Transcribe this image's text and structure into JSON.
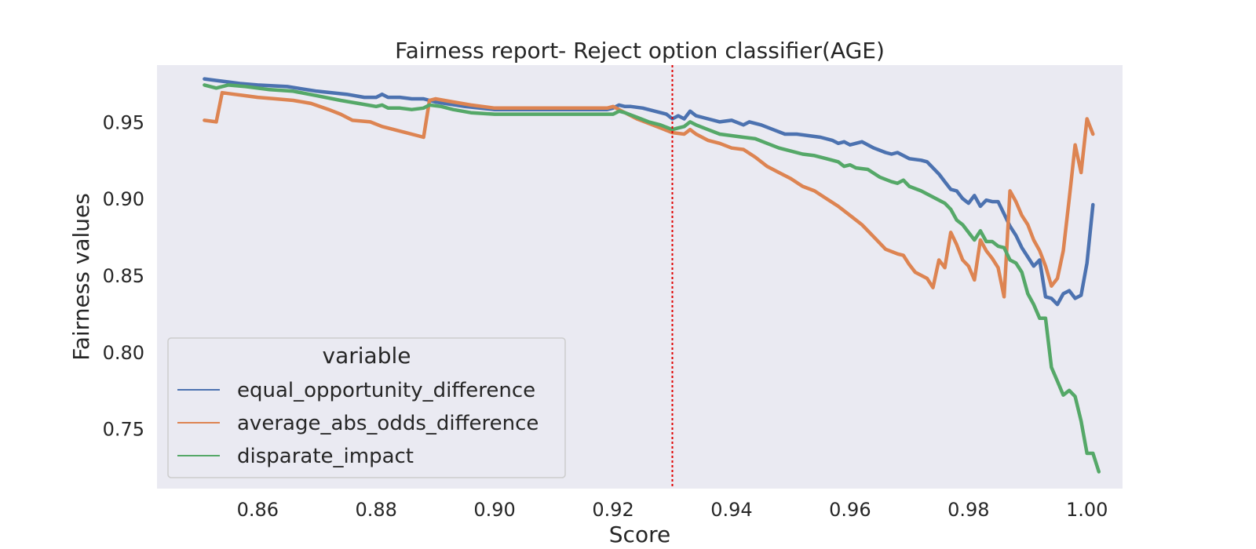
{
  "chart_data": {
    "type": "line",
    "title": "Fairness report- Reject option classifier(AGE)",
    "xlabel": "Score",
    "ylabel": "Fairness values",
    "xlim": [
      0.843,
      1.006
    ],
    "ylim": [
      0.711,
      0.987
    ],
    "xticks": [
      "0.86",
      "0.88",
      "0.90",
      "0.92",
      "0.94",
      "0.96",
      "0.98",
      "1.00"
    ],
    "yticks": [
      "0.75",
      "0.80",
      "0.85",
      "0.90",
      "0.95"
    ],
    "grid": false,
    "background": "#eaeaf2",
    "reference_line": {
      "x": 0.93,
      "color": "#e00000",
      "style": "dotted"
    },
    "legend": {
      "title": "variable",
      "placement": "lower-left"
    },
    "series": [
      {
        "name": "equal_opportunity_difference",
        "color": "#4c72b0",
        "points": [
          [
            0.851,
            0.978
          ],
          [
            0.853,
            0.977
          ],
          [
            0.855,
            0.976
          ],
          [
            0.857,
            0.975
          ],
          [
            0.86,
            0.974
          ],
          [
            0.865,
            0.973
          ],
          [
            0.87,
            0.97
          ],
          [
            0.875,
            0.968
          ],
          [
            0.878,
            0.966
          ],
          [
            0.88,
            0.966
          ],
          [
            0.881,
            0.968
          ],
          [
            0.882,
            0.966
          ],
          [
            0.884,
            0.966
          ],
          [
            0.886,
            0.965
          ],
          [
            0.888,
            0.965
          ],
          [
            0.89,
            0.963
          ],
          [
            0.895,
            0.96
          ],
          [
            0.9,
            0.958
          ],
          [
            0.905,
            0.958
          ],
          [
            0.91,
            0.958
          ],
          [
            0.915,
            0.958
          ],
          [
            0.919,
            0.958
          ],
          [
            0.92,
            0.959
          ],
          [
            0.921,
            0.961
          ],
          [
            0.922,
            0.96
          ],
          [
            0.923,
            0.96
          ],
          [
            0.925,
            0.959
          ],
          [
            0.927,
            0.957
          ],
          [
            0.929,
            0.955
          ],
          [
            0.93,
            0.952
          ],
          [
            0.931,
            0.954
          ],
          [
            0.932,
            0.952
          ],
          [
            0.933,
            0.957
          ],
          [
            0.934,
            0.954
          ],
          [
            0.936,
            0.952
          ],
          [
            0.938,
            0.95
          ],
          [
            0.94,
            0.951
          ],
          [
            0.942,
            0.948
          ],
          [
            0.943,
            0.95
          ],
          [
            0.945,
            0.948
          ],
          [
            0.947,
            0.945
          ],
          [
            0.949,
            0.942
          ],
          [
            0.951,
            0.942
          ],
          [
            0.953,
            0.941
          ],
          [
            0.955,
            0.94
          ],
          [
            0.957,
            0.938
          ],
          [
            0.958,
            0.936
          ],
          [
            0.959,
            0.937
          ],
          [
            0.96,
            0.935
          ],
          [
            0.962,
            0.937
          ],
          [
            0.964,
            0.933
          ],
          [
            0.966,
            0.93
          ],
          [
            0.967,
            0.929
          ],
          [
            0.968,
            0.93
          ],
          [
            0.97,
            0.926
          ],
          [
            0.972,
            0.925
          ],
          [
            0.973,
            0.924
          ],
          [
            0.974,
            0.92
          ],
          [
            0.975,
            0.916
          ],
          [
            0.976,
            0.911
          ],
          [
            0.977,
            0.906
          ],
          [
            0.978,
            0.905
          ],
          [
            0.979,
            0.9
          ],
          [
            0.98,
            0.897
          ],
          [
            0.981,
            0.902
          ],
          [
            0.982,
            0.895
          ],
          [
            0.983,
            0.899
          ],
          [
            0.984,
            0.898
          ],
          [
            0.985,
            0.898
          ],
          [
            0.986,
            0.89
          ],
          [
            0.987,
            0.882
          ],
          [
            0.988,
            0.876
          ],
          [
            0.989,
            0.868
          ],
          [
            0.99,
            0.862
          ],
          [
            0.991,
            0.856
          ],
          [
            0.992,
            0.86
          ],
          [
            0.993,
            0.836
          ],
          [
            0.994,
            0.835
          ],
          [
            0.995,
            0.831
          ],
          [
            0.996,
            0.838
          ],
          [
            0.997,
            0.84
          ],
          [
            0.998,
            0.835
          ],
          [
            0.999,
            0.837
          ],
          [
            1.0,
            0.858
          ],
          [
            1.001,
            0.896
          ]
        ]
      },
      {
        "name": "average_abs_odds_difference",
        "color": "#dd8452",
        "points": [
          [
            0.851,
            0.951
          ],
          [
            0.853,
            0.95
          ],
          [
            0.854,
            0.969
          ],
          [
            0.856,
            0.968
          ],
          [
            0.858,
            0.967
          ],
          [
            0.86,
            0.966
          ],
          [
            0.863,
            0.965
          ],
          [
            0.866,
            0.964
          ],
          [
            0.869,
            0.962
          ],
          [
            0.872,
            0.958
          ],
          [
            0.874,
            0.955
          ],
          [
            0.876,
            0.951
          ],
          [
            0.879,
            0.95
          ],
          [
            0.881,
            0.947
          ],
          [
            0.883,
            0.945
          ],
          [
            0.885,
            0.943
          ],
          [
            0.887,
            0.941
          ],
          [
            0.888,
            0.94
          ],
          [
            0.889,
            0.964
          ],
          [
            0.89,
            0.965
          ],
          [
            0.893,
            0.963
          ],
          [
            0.896,
            0.961
          ],
          [
            0.9,
            0.959
          ],
          [
            0.905,
            0.959
          ],
          [
            0.91,
            0.959
          ],
          [
            0.915,
            0.959
          ],
          [
            0.919,
            0.959
          ],
          [
            0.92,
            0.96
          ],
          [
            0.921,
            0.958
          ],
          [
            0.922,
            0.956
          ],
          [
            0.924,
            0.952
          ],
          [
            0.926,
            0.949
          ],
          [
            0.928,
            0.946
          ],
          [
            0.93,
            0.943
          ],
          [
            0.932,
            0.942
          ],
          [
            0.933,
            0.945
          ],
          [
            0.934,
            0.942
          ],
          [
            0.936,
            0.938
          ],
          [
            0.938,
            0.936
          ],
          [
            0.94,
            0.933
          ],
          [
            0.942,
            0.932
          ],
          [
            0.944,
            0.927
          ],
          [
            0.946,
            0.921
          ],
          [
            0.948,
            0.917
          ],
          [
            0.95,
            0.913
          ],
          [
            0.952,
            0.908
          ],
          [
            0.954,
            0.905
          ],
          [
            0.956,
            0.9
          ],
          [
            0.958,
            0.895
          ],
          [
            0.96,
            0.889
          ],
          [
            0.962,
            0.883
          ],
          [
            0.964,
            0.875
          ],
          [
            0.966,
            0.867
          ],
          [
            0.968,
            0.864
          ],
          [
            0.969,
            0.863
          ],
          [
            0.97,
            0.857
          ],
          [
            0.971,
            0.852
          ],
          [
            0.973,
            0.848
          ],
          [
            0.974,
            0.842
          ],
          [
            0.975,
            0.86
          ],
          [
            0.976,
            0.855
          ],
          [
            0.977,
            0.878
          ],
          [
            0.978,
            0.87
          ],
          [
            0.979,
            0.86
          ],
          [
            0.98,
            0.856
          ],
          [
            0.981,
            0.847
          ],
          [
            0.982,
            0.873
          ],
          [
            0.983,
            0.866
          ],
          [
            0.984,
            0.861
          ],
          [
            0.985,
            0.855
          ],
          [
            0.986,
            0.836
          ],
          [
            0.987,
            0.905
          ],
          [
            0.988,
            0.898
          ],
          [
            0.989,
            0.889
          ],
          [
            0.99,
            0.883
          ],
          [
            0.991,
            0.873
          ],
          [
            0.992,
            0.866
          ],
          [
            0.993,
            0.856
          ],
          [
            0.994,
            0.843
          ],
          [
            0.995,
            0.848
          ],
          [
            0.996,
            0.866
          ],
          [
            0.997,
            0.9
          ],
          [
            0.998,
            0.935
          ],
          [
            0.999,
            0.917
          ],
          [
            1.0,
            0.952
          ],
          [
            1.001,
            0.942
          ]
        ]
      },
      {
        "name": "disparate_impact",
        "color": "#55a868",
        "points": [
          [
            0.851,
            0.974
          ],
          [
            0.853,
            0.972
          ],
          [
            0.855,
            0.974
          ],
          [
            0.858,
            0.973
          ],
          [
            0.862,
            0.971
          ],
          [
            0.866,
            0.97
          ],
          [
            0.87,
            0.967
          ],
          [
            0.874,
            0.964
          ],
          [
            0.877,
            0.962
          ],
          [
            0.88,
            0.96
          ],
          [
            0.881,
            0.961
          ],
          [
            0.882,
            0.959
          ],
          [
            0.884,
            0.959
          ],
          [
            0.886,
            0.958
          ],
          [
            0.888,
            0.959
          ],
          [
            0.889,
            0.961
          ],
          [
            0.891,
            0.96
          ],
          [
            0.893,
            0.958
          ],
          [
            0.896,
            0.956
          ],
          [
            0.9,
            0.955
          ],
          [
            0.905,
            0.955
          ],
          [
            0.91,
            0.955
          ],
          [
            0.915,
            0.955
          ],
          [
            0.92,
            0.955
          ],
          [
            0.921,
            0.957
          ],
          [
            0.922,
            0.956
          ],
          [
            0.924,
            0.953
          ],
          [
            0.926,
            0.95
          ],
          [
            0.928,
            0.948
          ],
          [
            0.93,
            0.945
          ],
          [
            0.931,
            0.946
          ],
          [
            0.932,
            0.947
          ],
          [
            0.933,
            0.95
          ],
          [
            0.934,
            0.948
          ],
          [
            0.936,
            0.945
          ],
          [
            0.938,
            0.942
          ],
          [
            0.94,
            0.941
          ],
          [
            0.942,
            0.94
          ],
          [
            0.944,
            0.939
          ],
          [
            0.946,
            0.936
          ],
          [
            0.948,
            0.933
          ],
          [
            0.95,
            0.931
          ],
          [
            0.952,
            0.929
          ],
          [
            0.954,
            0.928
          ],
          [
            0.956,
            0.926
          ],
          [
            0.958,
            0.924
          ],
          [
            0.959,
            0.921
          ],
          [
            0.96,
            0.922
          ],
          [
            0.961,
            0.92
          ],
          [
            0.963,
            0.919
          ],
          [
            0.965,
            0.914
          ],
          [
            0.967,
            0.911
          ],
          [
            0.968,
            0.91
          ],
          [
            0.969,
            0.912
          ],
          [
            0.97,
            0.908
          ],
          [
            0.972,
            0.905
          ],
          [
            0.974,
            0.901
          ],
          [
            0.976,
            0.897
          ],
          [
            0.977,
            0.893
          ],
          [
            0.978,
            0.886
          ],
          [
            0.979,
            0.883
          ],
          [
            0.98,
            0.878
          ],
          [
            0.981,
            0.873
          ],
          [
            0.982,
            0.879
          ],
          [
            0.983,
            0.872
          ],
          [
            0.984,
            0.872
          ],
          [
            0.985,
            0.869
          ],
          [
            0.986,
            0.868
          ],
          [
            0.987,
            0.86
          ],
          [
            0.988,
            0.858
          ],
          [
            0.989,
            0.852
          ],
          [
            0.99,
            0.838
          ],
          [
            0.991,
            0.831
          ],
          [
            0.992,
            0.822
          ],
          [
            0.993,
            0.822
          ],
          [
            0.994,
            0.79
          ],
          [
            0.995,
            0.781
          ],
          [
            0.996,
            0.772
          ],
          [
            0.997,
            0.775
          ],
          [
            0.998,
            0.771
          ],
          [
            0.999,
            0.755
          ],
          [
            1.0,
            0.734
          ],
          [
            1.001,
            0.734
          ],
          [
            1.002,
            0.722
          ]
        ]
      }
    ]
  }
}
